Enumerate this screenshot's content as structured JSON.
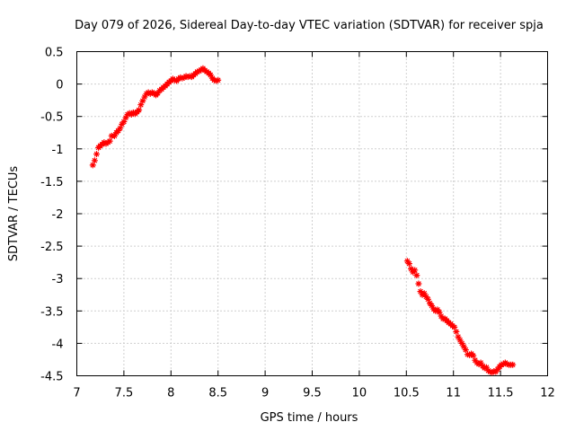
{
  "chart_data": {
    "type": "scatter",
    "title": "Day 079 of 2026, Sidereal Day-to-day VTEC variation (SDTVAR) for receiver spja",
    "xlabel": "GPS time / hours",
    "ylabel": "SDTVAR / TECUs",
    "xlim": [
      7,
      12
    ],
    "ylim": [
      -4.5,
      0.5
    ],
    "xticks": [
      7,
      7.5,
      8,
      8.5,
      9,
      9.5,
      10,
      10.5,
      11,
      11.5,
      12
    ],
    "xtick_labels": [
      "7",
      "7.5",
      "8",
      "8.5",
      "9",
      "9.5",
      "10",
      "10.5",
      "11",
      "11.5",
      "12"
    ],
    "yticks": [
      0.5,
      0,
      -0.5,
      -1,
      -1.5,
      -2,
      -2.5,
      -3,
      -3.5,
      -4,
      -4.5
    ],
    "ytick_labels": [
      "0.5",
      "0",
      "-0.5",
      "-1",
      "-1.5",
      "-2",
      "-2.5",
      "-3",
      "-3.5",
      "-4",
      "-4.5"
    ],
    "grid": true,
    "legend": "none",
    "marker": "plus-cross",
    "series": [
      {
        "name": "SDTVAR",
        "color": "#ff0000",
        "points": [
          [
            7.17,
            -1.25
          ],
          [
            7.19,
            -1.18
          ],
          [
            7.21,
            -1.08
          ],
          [
            7.23,
            -0.98
          ],
          [
            7.25,
            -0.95
          ],
          [
            7.27,
            -0.93
          ],
          [
            7.29,
            -0.9
          ],
          [
            7.31,
            -0.92
          ],
          [
            7.33,
            -0.9
          ],
          [
            7.35,
            -0.88
          ],
          [
            7.37,
            -0.8
          ],
          [
            7.4,
            -0.8
          ],
          [
            7.42,
            -0.75
          ],
          [
            7.44,
            -0.72
          ],
          [
            7.46,
            -0.68
          ],
          [
            7.48,
            -0.62
          ],
          [
            7.5,
            -0.58
          ],
          [
            7.52,
            -0.52
          ],
          [
            7.54,
            -0.47
          ],
          [
            7.56,
            -0.45
          ],
          [
            7.58,
            -0.47
          ],
          [
            7.6,
            -0.44
          ],
          [
            7.62,
            -0.46
          ],
          [
            7.64,
            -0.43
          ],
          [
            7.66,
            -0.4
          ],
          [
            7.68,
            -0.32
          ],
          [
            7.7,
            -0.26
          ],
          [
            7.72,
            -0.2
          ],
          [
            7.74,
            -0.15
          ],
          [
            7.76,
            -0.13
          ],
          [
            7.78,
            -0.15
          ],
          [
            7.8,
            -0.13
          ],
          [
            7.82,
            -0.14
          ],
          [
            7.84,
            -0.17
          ],
          [
            7.86,
            -0.14
          ],
          [
            7.88,
            -0.1
          ],
          [
            7.9,
            -0.08
          ],
          [
            7.92,
            -0.05
          ],
          [
            7.94,
            -0.03
          ],
          [
            7.96,
            0.0
          ],
          [
            7.98,
            0.03
          ],
          [
            8.0,
            0.05
          ],
          [
            8.02,
            0.08
          ],
          [
            8.04,
            0.06
          ],
          [
            8.06,
            0.05
          ],
          [
            8.08,
            0.08
          ],
          [
            8.1,
            0.1
          ],
          [
            8.12,
            0.09
          ],
          [
            8.14,
            0.1
          ],
          [
            8.16,
            0.12
          ],
          [
            8.18,
            0.11
          ],
          [
            8.2,
            0.12
          ],
          [
            8.22,
            0.11
          ],
          [
            8.24,
            0.14
          ],
          [
            8.26,
            0.16
          ],
          [
            8.28,
            0.19
          ],
          [
            8.3,
            0.2
          ],
          [
            8.32,
            0.22
          ],
          [
            8.34,
            0.24
          ],
          [
            8.36,
            0.21
          ],
          [
            8.38,
            0.19
          ],
          [
            8.4,
            0.17
          ],
          [
            8.42,
            0.14
          ],
          [
            8.44,
            0.09
          ],
          [
            8.46,
            0.06
          ],
          [
            8.48,
            0.05
          ],
          [
            8.5,
            0.06
          ],
          [
            10.51,
            -2.73
          ],
          [
            10.53,
            -2.77
          ],
          [
            10.55,
            -2.85
          ],
          [
            10.57,
            -2.9
          ],
          [
            10.59,
            -2.87
          ],
          [
            10.61,
            -2.95
          ],
          [
            10.63,
            -3.08
          ],
          [
            10.65,
            -3.2
          ],
          [
            10.67,
            -3.25
          ],
          [
            10.69,
            -3.23
          ],
          [
            10.71,
            -3.28
          ],
          [
            10.73,
            -3.32
          ],
          [
            10.75,
            -3.38
          ],
          [
            10.77,
            -3.42
          ],
          [
            10.79,
            -3.47
          ],
          [
            10.81,
            -3.5
          ],
          [
            10.83,
            -3.48
          ],
          [
            10.85,
            -3.52
          ],
          [
            10.87,
            -3.58
          ],
          [
            10.89,
            -3.62
          ],
          [
            10.91,
            -3.62
          ],
          [
            10.93,
            -3.65
          ],
          [
            10.95,
            -3.68
          ],
          [
            10.97,
            -3.7
          ],
          [
            10.99,
            -3.73
          ],
          [
            11.01,
            -3.75
          ],
          [
            11.03,
            -3.82
          ],
          [
            11.05,
            -3.9
          ],
          [
            11.07,
            -3.95
          ],
          [
            11.09,
            -4.0
          ],
          [
            11.11,
            -4.05
          ],
          [
            11.13,
            -4.1
          ],
          [
            11.15,
            -4.17
          ],
          [
            11.17,
            -4.18
          ],
          [
            11.19,
            -4.16
          ],
          [
            11.21,
            -4.19
          ],
          [
            11.23,
            -4.26
          ],
          [
            11.25,
            -4.3
          ],
          [
            11.27,
            -4.32
          ],
          [
            11.29,
            -4.3
          ],
          [
            11.31,
            -4.35
          ],
          [
            11.33,
            -4.38
          ],
          [
            11.35,
            -4.37
          ],
          [
            11.37,
            -4.42
          ],
          [
            11.39,
            -4.44
          ],
          [
            11.41,
            -4.45
          ],
          [
            11.43,
            -4.43
          ],
          [
            11.45,
            -4.44
          ],
          [
            11.47,
            -4.4
          ],
          [
            11.49,
            -4.36
          ],
          [
            11.51,
            -4.33
          ],
          [
            11.53,
            -4.32
          ],
          [
            11.55,
            -4.3
          ],
          [
            11.57,
            -4.32
          ],
          [
            11.59,
            -4.33
          ],
          [
            11.61,
            -4.33
          ],
          [
            11.63,
            -4.33
          ]
        ]
      }
    ]
  }
}
